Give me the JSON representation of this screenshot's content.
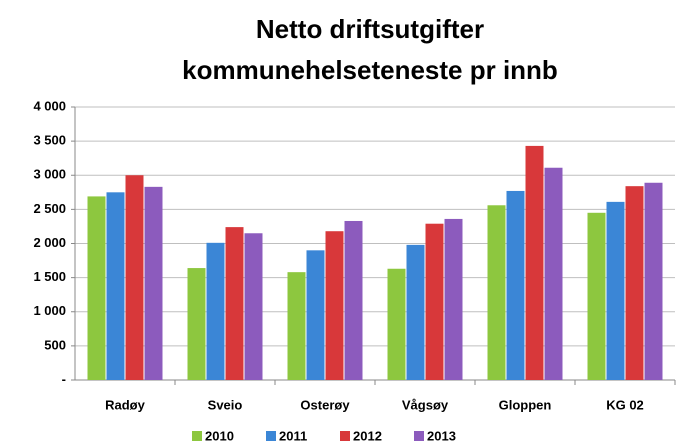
{
  "chart_data": {
    "type": "bar",
    "title": [
      "Netto driftsutgifter",
      "kommunehelseteneste pr innb"
    ],
    "categories": [
      "Radøy",
      "Sveio",
      "Osterøy",
      "Vågsøy",
      "Gloppen",
      "KG 02"
    ],
    "series": [
      {
        "name": "2010",
        "color": "#8dc73f",
        "values": [
          2690,
          1640,
          1580,
          1630,
          2560,
          2450
        ]
      },
      {
        "name": "2011",
        "color": "#3b86d6",
        "values": [
          2750,
          2010,
          1900,
          1980,
          2770,
          2610
        ]
      },
      {
        "name": "2012",
        "color": "#d8383a",
        "values": [
          3000,
          2240,
          2180,
          2290,
          3430,
          2840
        ]
      },
      {
        "name": "2013",
        "color": "#8c5bbd",
        "values": [
          2830,
          2150,
          2330,
          2360,
          3110,
          2890
        ]
      }
    ],
    "ylim": [
      0,
      4000
    ],
    "yticks": [
      {
        "value": 0,
        "label": "-"
      },
      {
        "value": 500,
        "label": "500"
      },
      {
        "value": 1000,
        "label": "1 000"
      },
      {
        "value": 1500,
        "label": "1 500"
      },
      {
        "value": 2000,
        "label": "2 000"
      },
      {
        "value": 2500,
        "label": "2 500"
      },
      {
        "value": 3000,
        "label": "3 000"
      },
      {
        "value": 3500,
        "label": "3 500"
      },
      {
        "value": 4000,
        "label": "4 000"
      }
    ],
    "grid": true,
    "legend": "bottom"
  }
}
